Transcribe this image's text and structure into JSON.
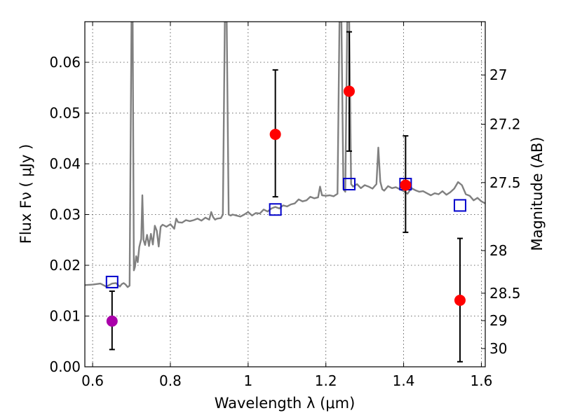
{
  "chart_data": {
    "type": "scatter",
    "xlabel": "Wavelength  λ (μm)",
    "ylabel_left": "Flux  Fν ( μJy )",
    "ylabel_right": "Magnitude (AB)",
    "xlim": [
      0.58,
      1.61
    ],
    "ylim": [
      0.0,
      0.068
    ],
    "grid": true,
    "x_ticks": [
      0.6,
      0.8,
      1.0,
      1.2,
      1.4,
      1.6
    ],
    "x_tick_labels": [
      "0.6",
      "0.8",
      "1",
      "1.2",
      "1.4",
      "1.6"
    ],
    "y_ticks": [
      0.0,
      0.01,
      0.02,
      0.03,
      0.04,
      0.05,
      0.06
    ],
    "y_tick_labels": [
      "0.00",
      "0.01",
      "0.02",
      "0.03",
      "0.04",
      "0.05",
      "0.06"
    ],
    "right_ticks": [
      {
        "flux": 0.0575,
        "label": "27"
      },
      {
        "flux": 0.0478,
        "label": "27.2"
      },
      {
        "flux": 0.0363,
        "label": "27.5"
      },
      {
        "flux": 0.0229,
        "label": "28"
      },
      {
        "flux": 0.0145,
        "label": "28.5"
      },
      {
        "flux": 0.0091,
        "label": "29"
      },
      {
        "flux": 0.0036,
        "label": "30"
      }
    ],
    "series": [
      {
        "kind": "line",
        "color": "#808080",
        "x": [
          0.58,
          0.6,
          0.62,
          0.635,
          0.65,
          0.66,
          0.67,
          0.675,
          0.68,
          0.685,
          0.69,
          0.695,
          0.7,
          0.703,
          0.706,
          0.709,
          0.712,
          0.716,
          0.72,
          0.725,
          0.728,
          0.731,
          0.735,
          0.74,
          0.745,
          0.75,
          0.755,
          0.76,
          0.765,
          0.77,
          0.775,
          0.78,
          0.79,
          0.8,
          0.81,
          0.815,
          0.82,
          0.83,
          0.84,
          0.85,
          0.86,
          0.87,
          0.88,
          0.89,
          0.9,
          0.905,
          0.91,
          0.915,
          0.92,
          0.93,
          0.935,
          0.94,
          0.945,
          0.95,
          0.955,
          0.96,
          0.97,
          0.98,
          0.99,
          1.0,
          1.01,
          1.02,
          1.03,
          1.04,
          1.05,
          1.06,
          1.07,
          1.08,
          1.09,
          1.1,
          1.11,
          1.12,
          1.13,
          1.14,
          1.15,
          1.16,
          1.17,
          1.18,
          1.185,
          1.19,
          1.2,
          1.21,
          1.22,
          1.23,
          1.235,
          1.24,
          1.245,
          1.25,
          1.255,
          1.26,
          1.265,
          1.27,
          1.28,
          1.29,
          1.3,
          1.31,
          1.32,
          1.33,
          1.335,
          1.34,
          1.345,
          1.35,
          1.36,
          1.37,
          1.38,
          1.39,
          1.4,
          1.41,
          1.42,
          1.43,
          1.44,
          1.45,
          1.46,
          1.47,
          1.48,
          1.49,
          1.5,
          1.51,
          1.52,
          1.53,
          1.54,
          1.55,
          1.56,
          1.57,
          1.58,
          1.59,
          1.6,
          1.61
        ],
        "y": [
          0.0161,
          0.0162,
          0.0164,
          0.0158,
          0.0164,
          0.0165,
          0.0158,
          0.0163,
          0.0165,
          0.0162,
          0.0157,
          0.016,
          0.068,
          0.068,
          0.019,
          0.0197,
          0.0218,
          0.0206,
          0.0236,
          0.0252,
          0.0338,
          0.025,
          0.024,
          0.026,
          0.0238,
          0.0262,
          0.0241,
          0.0278,
          0.0268,
          0.0237,
          0.0276,
          0.028,
          0.0276,
          0.0281,
          0.0272,
          0.0292,
          0.0285,
          0.0284,
          0.0289,
          0.0287,
          0.0289,
          0.0292,
          0.0288,
          0.0294,
          0.029,
          0.0305,
          0.0295,
          0.029,
          0.0292,
          0.0293,
          0.03,
          0.068,
          0.068,
          0.03,
          0.0298,
          0.03,
          0.0298,
          0.0296,
          0.03,
          0.0305,
          0.0298,
          0.0303,
          0.0302,
          0.031,
          0.0306,
          0.0312,
          0.0315,
          0.0312,
          0.0318,
          0.0316,
          0.032,
          0.0322,
          0.033,
          0.0326,
          0.0328,
          0.0335,
          0.0332,
          0.0334,
          0.0355,
          0.0338,
          0.0337,
          0.0338,
          0.0336,
          0.0341,
          0.068,
          0.068,
          0.035,
          0.0345,
          0.068,
          0.068,
          0.036,
          0.0355,
          0.036,
          0.0352,
          0.0358,
          0.0355,
          0.0351,
          0.036,
          0.0432,
          0.0365,
          0.035,
          0.0347,
          0.0356,
          0.0352,
          0.0354,
          0.035,
          0.0346,
          0.0341,
          0.0352,
          0.0348,
          0.0345,
          0.0346,
          0.0342,
          0.0338,
          0.0342,
          0.034,
          0.0346,
          0.0339,
          0.0344,
          0.0351,
          0.0364,
          0.0358,
          0.034,
          0.0337,
          0.0328,
          0.0333,
          0.0326,
          0.0322
        ]
      },
      {
        "kind": "model-squares",
        "color": "#0000cc",
        "x": [
          0.65,
          1.07,
          1.26,
          1.405,
          1.545
        ],
        "y": [
          0.0167,
          0.031,
          0.036,
          0.036,
          0.0318
        ]
      },
      {
        "kind": "observed-points",
        "x": [
          0.65,
          1.07,
          1.26,
          1.405,
          1.545
        ],
        "y": [
          0.009,
          0.0458,
          0.0543,
          0.0358,
          0.0131
        ],
        "yerr_low": [
          0.0034,
          0.0335,
          0.0425,
          0.0265,
          0.001
        ],
        "yerr_high": [
          0.0149,
          0.0585,
          0.066,
          0.0455,
          0.0253
        ],
        "colors": [
          "#aa00aa",
          "#ff0000",
          "#ff0000",
          "#ff0000",
          "#ff0000"
        ]
      }
    ]
  }
}
